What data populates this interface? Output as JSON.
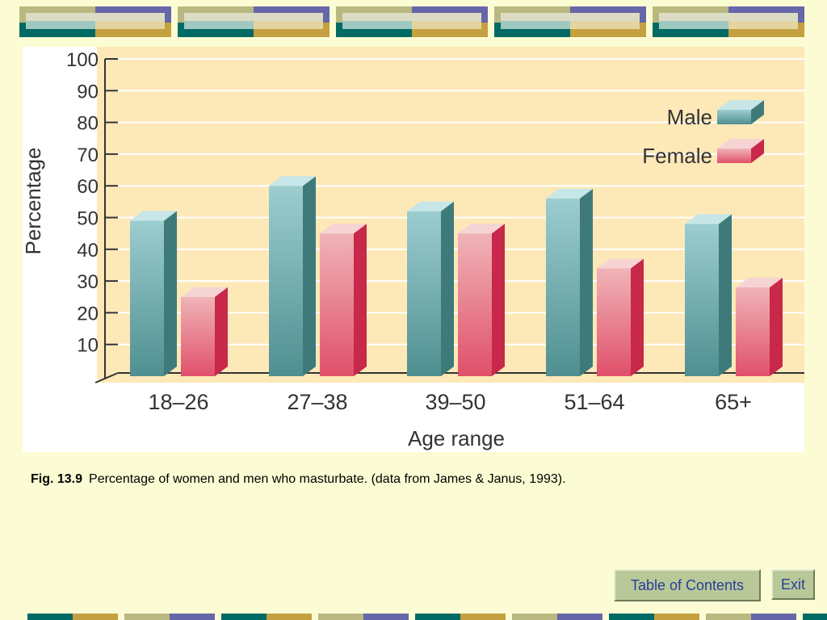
{
  "colors": {
    "page_background": "#fcfcd4",
    "plot_background": "#fde8b8",
    "male_bar": "#6aa8ac",
    "female_bar": "#e8868e",
    "teal": "#006a64",
    "gold": "#c4a040",
    "purple": "#6666aa",
    "olive": "#b8b880",
    "button_bg": "#b8c898",
    "button_text": "#2a3e9a"
  },
  "chart_data": {
    "type": "bar",
    "style": "3d",
    "title": "",
    "xlabel": "Age range",
    "ylabel": "Percentage",
    "ylim": [
      0,
      100
    ],
    "yticks": [
      10,
      20,
      30,
      40,
      50,
      60,
      70,
      80,
      90,
      100
    ],
    "categories": [
      "18–26",
      "27–38",
      "39–50",
      "51–64",
      "65+"
    ],
    "series": [
      {
        "name": "Male",
        "color": "#6aa8ac",
        "values": [
          49,
          60,
          52,
          56,
          48
        ]
      },
      {
        "name": "Female",
        "color": "#e8868e",
        "values": [
          25,
          45,
          45,
          34,
          28
        ]
      }
    ],
    "legend": "top-right",
    "grid": "horizontal"
  },
  "caption": {
    "figure_number": "Fig. 13.9",
    "text": "Percentage of women and men who masturbate. (data from James & Janus, 1993)."
  },
  "buttons": {
    "toc_label": "Table of Contents",
    "exit_label": "Exit"
  }
}
